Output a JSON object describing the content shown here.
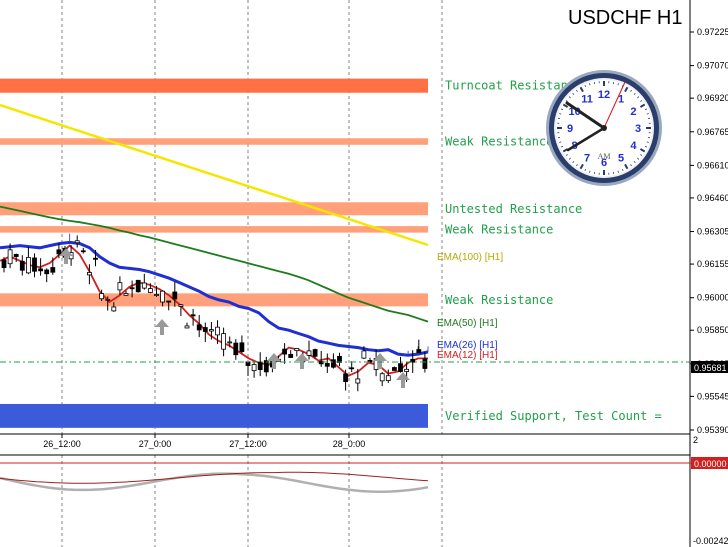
{
  "chart_data": {
    "type": "candlestick",
    "title": "USDCHF H1",
    "symbol": "USDCHF",
    "timeframe": "H1",
    "price_axis": {
      "ylim": [
        0.9539,
        0.9722
      ],
      "ticks": [
        "0.97225",
        "0.97070",
        "0.96920",
        "0.96765",
        "0.96610",
        "0.96460",
        "0.96305",
        "0.96155",
        "0.96000",
        "0.95850",
        "0.95695",
        "0.95545",
        "0.95390"
      ],
      "current_price": "0.95681"
    },
    "time_axis": {
      "ticks": [
        "26_12:00",
        "27_0:00",
        "27_12:00",
        "28_0:00"
      ]
    },
    "zones": [
      {
        "label": "Turncoat Resistance",
        "ymin": 0.96945,
        "ymax": 0.9701,
        "color": "#ff7045"
      },
      {
        "label": "Weak Resistance",
        "ymin": 0.96705,
        "ymax": 0.96735,
        "color": "#ffa07a"
      },
      {
        "label": "Untested Resistance",
        "ymin": 0.9638,
        "ymax": 0.9644,
        "color": "#ffa07a"
      },
      {
        "label": "Weak Resistance",
        "ymin": 0.963,
        "ymax": 0.9633,
        "color": "#ffa07a"
      },
      {
        "label": "Weak Resistance",
        "ymin": 0.9596,
        "ymax": 0.9602,
        "color": "#ffa07a"
      },
      {
        "label": "Verified Support, Test Count =",
        "ymin": 0.954,
        "ymax": 0.9551,
        "color": "#3b5bdb"
      }
    ],
    "series": [
      {
        "name": "EMA(100) [H1]",
        "color": "#f5e600",
        "values": [
          0.96888,
          0.96873,
          0.96858,
          0.96843,
          0.96828,
          0.96813,
          0.96798,
          0.96783,
          0.96768,
          0.96753,
          0.96738,
          0.96723,
          0.96708,
          0.96693,
          0.96678,
          0.96663,
          0.96648,
          0.96633,
          0.96618,
          0.96603,
          0.96588,
          0.96573,
          0.96558,
          0.96543,
          0.96528,
          0.96513,
          0.96498,
          0.96483,
          0.96468,
          0.96453,
          0.96438,
          0.96423,
          0.96408,
          0.96393,
          0.96378,
          0.96363,
          0.96348,
          0.96333,
          0.96318,
          0.96303,
          0.96288,
          0.96273,
          0.96258,
          0.96243
        ]
      },
      {
        "name": "EMA(50) [H1]",
        "color": "#1e7b1e",
        "values": [
          0.9642,
          0.9641,
          0.964,
          0.9639,
          0.9638,
          0.9637,
          0.96362,
          0.96354,
          0.96348,
          0.9634,
          0.96332,
          0.96322,
          0.9631,
          0.963,
          0.96288,
          0.96278,
          0.96266,
          0.96254,
          0.96242,
          0.9623,
          0.96218,
          0.96206,
          0.96194,
          0.96182,
          0.9617,
          0.96158,
          0.96146,
          0.96134,
          0.96122,
          0.9611,
          0.96096,
          0.9608,
          0.9606,
          0.9604,
          0.9602,
          0.96,
          0.95985,
          0.9597,
          0.95955,
          0.9594,
          0.9593,
          0.9592,
          0.95905,
          0.9589
        ]
      },
      {
        "name": "EMA(26) [H1]",
        "color": "#1f2fd0",
        "values": [
          0.9623,
          0.96235,
          0.9624,
          0.96235,
          0.9623,
          0.9624,
          0.9625,
          0.96255,
          0.9625,
          0.9623,
          0.9619,
          0.9616,
          0.9614,
          0.96135,
          0.9613,
          0.9612,
          0.96105,
          0.9609,
          0.9607,
          0.9605,
          0.9603,
          0.96005,
          0.9599,
          0.9598,
          0.9596,
          0.9595,
          0.9593,
          0.9589,
          0.9586,
          0.9585,
          0.95835,
          0.9582,
          0.958,
          0.9579,
          0.9578,
          0.95775,
          0.9577,
          0.9576,
          0.95755,
          0.9576,
          0.9574,
          0.95735,
          0.9574,
          0.9575
        ]
      },
      {
        "name": "EMA(12) [H1]",
        "color": "#d21f1f",
        "values": [
          0.9617,
          0.9619,
          0.9617,
          0.9615,
          0.9614,
          0.9616,
          0.962,
          0.9624,
          0.962,
          0.9612,
          0.9603,
          0.9598,
          0.9601,
          0.9605,
          0.9607,
          0.9606,
          0.9604,
          0.9601,
          0.9597,
          0.9592,
          0.9588,
          0.9583,
          0.958,
          0.9578,
          0.9575,
          0.9572,
          0.957,
          0.9569,
          0.9573,
          0.9577,
          0.9576,
          0.9574,
          0.9571,
          0.9572,
          0.9568,
          0.9564,
          0.9566,
          0.957,
          0.9569,
          0.9565,
          0.9566,
          0.957,
          0.9572,
          0.9572
        ]
      }
    ],
    "oscillator": {
      "ylim": [
        -0.00242,
        0.0
      ],
      "ticks": [
        "0.00000",
        "-0.00242"
      ],
      "level": "2"
    }
  },
  "clock": {
    "label": "AM",
    "numbers": [
      "12",
      "1",
      "2",
      "3",
      "4",
      "5",
      "6",
      "7",
      "8",
      "9",
      "10",
      "11"
    ]
  },
  "ema_labels": {
    "ema100": "EMA(100) [H1]",
    "ema50": "EMA(50) [H1]",
    "ema26": "EMA(26) [H1]",
    "ema12": "EMA(12) [H1]"
  },
  "colors": {
    "bull": "#ffffff",
    "bear": "#000000",
    "up": "#2ecc2e",
    "ema100": "#f5e600",
    "ema50": "#1e7b1e",
    "ema26": "#1f2fd0",
    "ema12": "#d21f1f"
  }
}
